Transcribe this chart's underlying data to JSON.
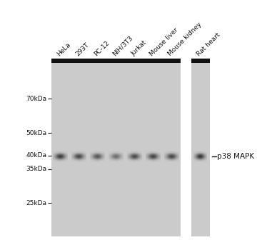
{
  "white_bg": "#ffffff",
  "panel_color": "#cbcbcb",
  "bar_color": "#111111",
  "lane_labels": [
    "HeLa",
    "293T",
    "PC-12",
    "NIH/3T3",
    "Jurkat",
    "Mouse liver",
    "Mouse kidney",
    "Rat heart"
  ],
  "mw_markers": [
    "70kDa",
    "50kDa",
    "40kDa",
    "35kDa",
    "25kDa"
  ],
  "band_label": "p38 MAPK",
  "label_fontsize": 6.5,
  "mw_fontsize": 6.5,
  "band_label_fontsize": 7.5,
  "n_lanes_p1": 7,
  "n_lanes_p2": 1,
  "band_intensities": [
    0.88,
    0.82,
    0.72,
    0.58,
    0.8,
    0.84,
    0.82,
    0.92
  ]
}
